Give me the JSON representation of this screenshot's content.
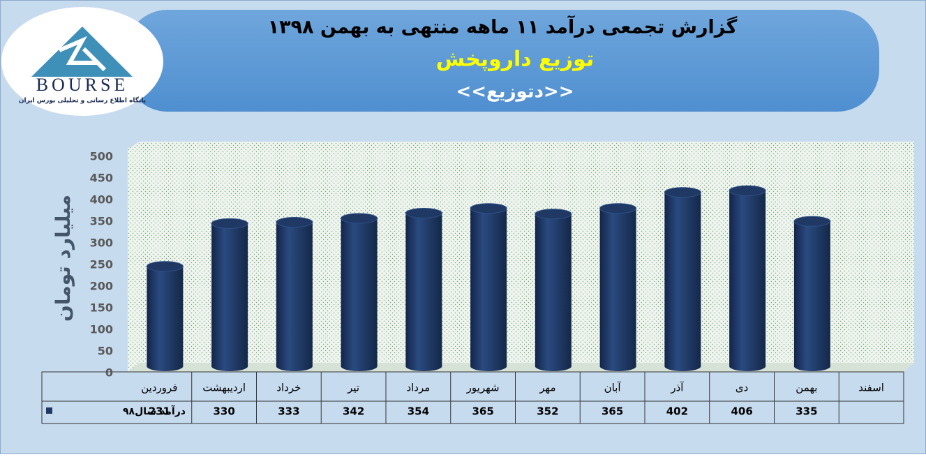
{
  "logo": {
    "name": "BOURSE",
    "tagline": "پایگاه اطلاع رسانی و تحلیلی بورس ایران"
  },
  "chart_data": {
    "type": "bar",
    "title": "گزارش تجمعی درآمد ۱۱ ماهه منتهی به بهمن ۱۳۹۸",
    "subtitle": "توزیع داروپخش",
    "subtitle2": "<<دتوزیع>>",
    "y_label": "میلیارد تومان",
    "categories": [
      "فروردین",
      "اردیبهشت",
      "خرداد",
      "تیر",
      "مرداد",
      "شهریور",
      "مهر",
      "آبان",
      "آذر",
      "دی",
      "بهمن",
      "اسفند"
    ],
    "series": [
      {
        "name": "درآمد سال۹۸",
        "color": "#1f3864",
        "values": [
          231,
          330,
          333,
          342,
          354,
          365,
          352,
          365,
          402,
          406,
          335,
          null
        ]
      }
    ],
    "ylim": [
      0,
      500
    ],
    "yticks": [
      0,
      50,
      100,
      150,
      200,
      250,
      300,
      350,
      400,
      450,
      500
    ],
    "grid": false
  }
}
